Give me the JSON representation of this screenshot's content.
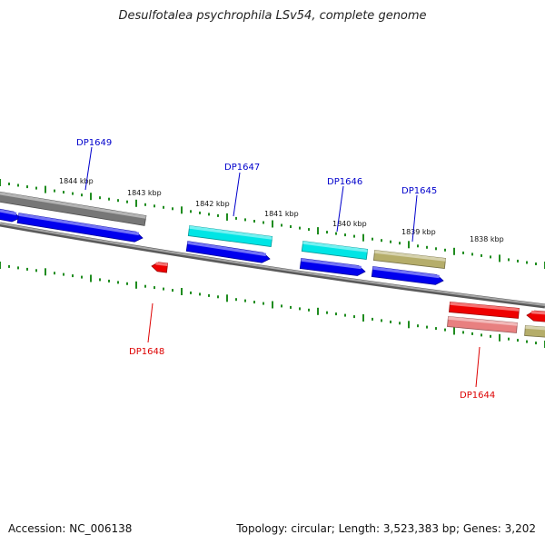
{
  "title": "Desulfotalea psychrophila LSv54, complete genome",
  "footer": {
    "accession": "Accession: NC_006138",
    "summary": "Topology: circular; Length: 3,523,383 bp; Genes: 3,202"
  },
  "colors": {
    "background": "#ffffff",
    "backbone": "#808080",
    "tick": "#1f8c1f",
    "forward_label": "#0000cc",
    "reverse_label": "#dd0000",
    "cds_blue": "#0000ee",
    "cds_cyan": "#00e5e5",
    "cds_gray": "#777777",
    "cds_khaki": "#b5ad6a",
    "cds_red": "#ee0000",
    "cds_pink": "#e88080"
  },
  "scale_labels": [
    "1844 kbp",
    "1843 kbp",
    "1842 kbp",
    "1841 kbp",
    "1840 kbp",
    "1839 kbp",
    "1838 kbp"
  ],
  "gene_labels": [
    {
      "name": "DP1649",
      "strand": "forward"
    },
    {
      "name": "DP1647",
      "strand": "forward"
    },
    {
      "name": "DP1646",
      "strand": "forward"
    },
    {
      "name": "DP1645",
      "strand": "forward"
    },
    {
      "name": "DP1648",
      "strand": "reverse"
    },
    {
      "name": "DP1644",
      "strand": "reverse"
    }
  ]
}
